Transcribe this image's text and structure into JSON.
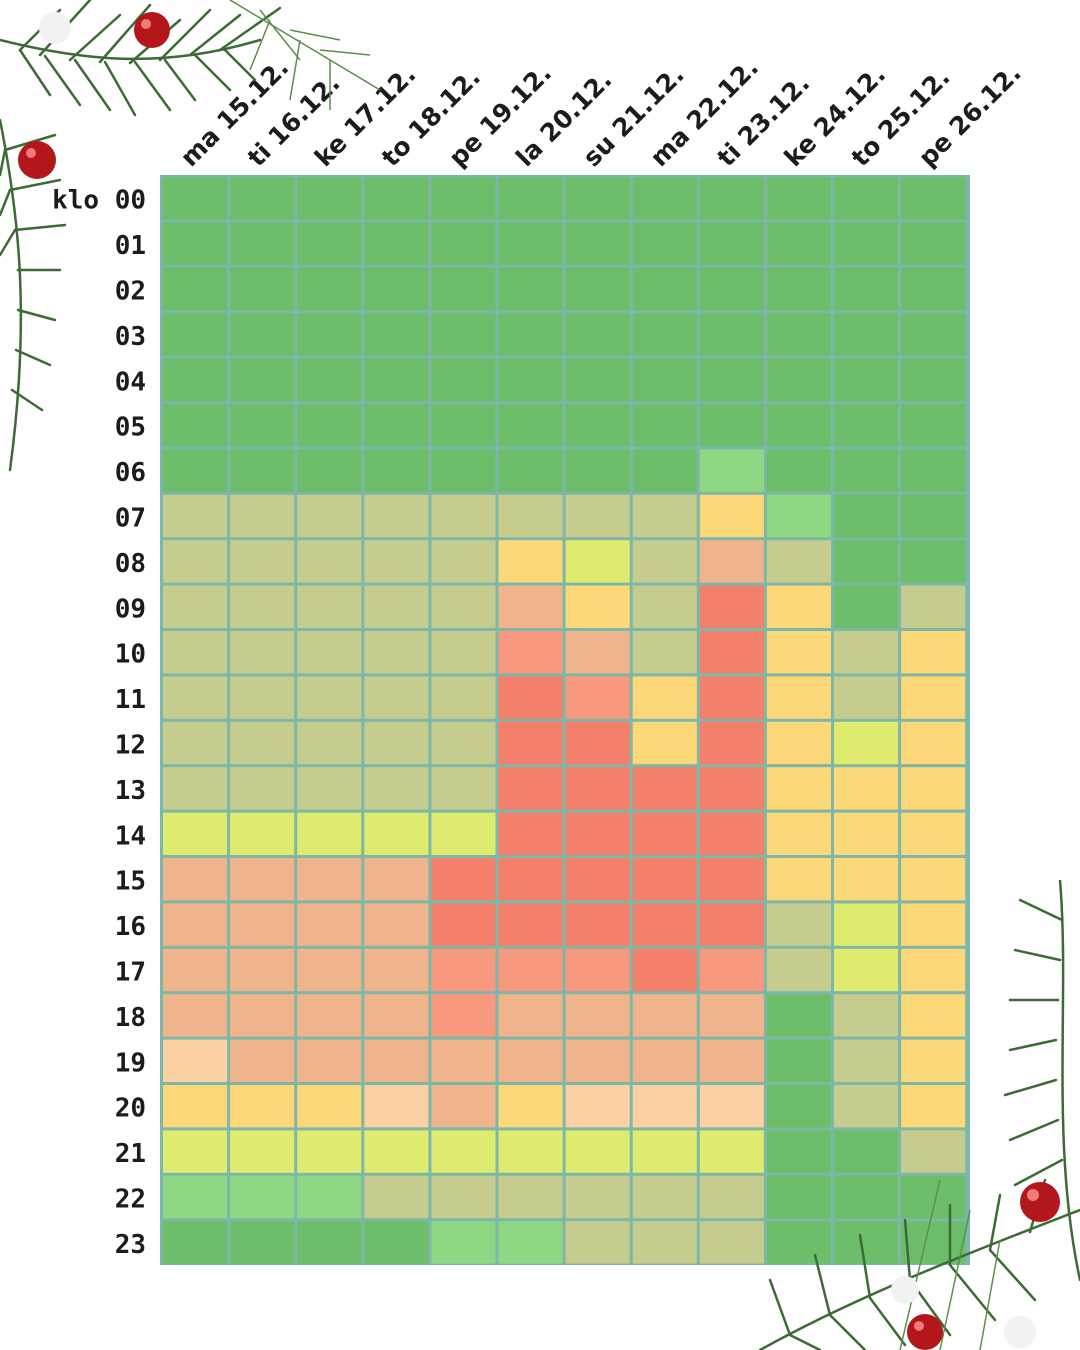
{
  "chart_data": {
    "type": "heatmap",
    "days": [
      "ma 15.12.",
      "ti 16.12.",
      "ke 17.12.",
      "to 18.12.",
      "pe 19.12.",
      "la 20.12.",
      "su 21.12.",
      "ma 22.12.",
      "ti 23.12.",
      "ke 24.12.",
      "to 25.12.",
      "pe 26.12."
    ],
    "hours": [
      "klo 00",
      "01",
      "02",
      "03",
      "04",
      "05",
      "06",
      "07",
      "08",
      "09",
      "10",
      "11",
      "12",
      "13",
      "14",
      "15",
      "16",
      "17",
      "18",
      "19",
      "20",
      "21",
      "22",
      "23"
    ],
    "levels": [
      [
        0,
        0,
        0,
        0,
        0,
        0,
        0,
        0,
        0,
        0,
        0,
        0
      ],
      [
        0,
        0,
        0,
        0,
        0,
        0,
        0,
        0,
        0,
        0,
        0,
        0
      ],
      [
        0,
        0,
        0,
        0,
        0,
        0,
        0,
        0,
        0,
        0,
        0,
        0
      ],
      [
        0,
        0,
        0,
        0,
        0,
        0,
        0,
        0,
        0,
        0,
        0,
        0
      ],
      [
        0,
        0,
        0,
        0,
        0,
        0,
        0,
        0,
        0,
        0,
        0,
        0
      ],
      [
        0,
        0,
        0,
        0,
        0,
        0,
        0,
        0,
        0,
        0,
        0,
        0
      ],
      [
        0,
        0,
        0,
        0,
        0,
        0,
        0,
        0,
        1,
        0,
        0,
        0
      ],
      [
        2,
        2,
        2,
        2,
        2,
        2,
        2,
        2,
        4,
        1,
        0,
        0
      ],
      [
        2,
        2,
        2,
        2,
        2,
        4,
        3,
        2,
        6,
        2,
        0,
        0
      ],
      [
        2,
        2,
        2,
        2,
        2,
        6,
        4,
        2,
        8,
        4,
        0,
        2
      ],
      [
        2,
        2,
        2,
        2,
        2,
        7,
        6,
        2,
        8,
        4,
        2,
        4
      ],
      [
        2,
        2,
        2,
        2,
        2,
        8,
        7,
        4,
        8,
        4,
        2,
        4
      ],
      [
        2,
        2,
        2,
        2,
        2,
        8,
        8,
        4,
        8,
        4,
        3,
        4
      ],
      [
        2,
        2,
        2,
        2,
        2,
        8,
        8,
        8,
        8,
        4,
        4,
        4
      ],
      [
        3,
        3,
        3,
        3,
        3,
        8,
        8,
        8,
        8,
        4,
        4,
        4
      ],
      [
        6,
        6,
        6,
        6,
        8,
        8,
        8,
        8,
        8,
        4,
        4,
        4
      ],
      [
        6,
        6,
        6,
        6,
        8,
        8,
        8,
        8,
        8,
        2,
        3,
        4
      ],
      [
        6,
        6,
        6,
        6,
        7,
        7,
        7,
        8,
        7,
        2,
        3,
        4
      ],
      [
        6,
        6,
        6,
        6,
        7,
        6,
        6,
        6,
        6,
        0,
        2,
        4
      ],
      [
        5,
        6,
        6,
        6,
        6,
        6,
        6,
        6,
        6,
        0,
        2,
        4
      ],
      [
        4,
        4,
        4,
        5,
        6,
        4,
        5,
        5,
        5,
        0,
        2,
        3.5
      ],
      [
        3,
        3,
        3,
        3,
        3,
        3,
        3,
        3,
        3,
        0,
        0,
        2
      ],
      [
        1,
        1,
        1,
        2,
        2,
        2,
        2,
        2,
        2,
        0,
        0,
        0
      ],
      [
        0,
        0,
        0,
        0,
        1,
        1,
        2,
        2,
        2,
        0,
        0,
        0
      ]
    ],
    "color_scale": [
      "#6dbe6a",
      "#8ed883",
      "#c6cb8e",
      "#dfeb6f",
      "#fdd878",
      "#fbd1a4",
      "#efb48c",
      "#f8997f",
      "#f47f6a"
    ],
    "legend": "none",
    "grid": true
  }
}
